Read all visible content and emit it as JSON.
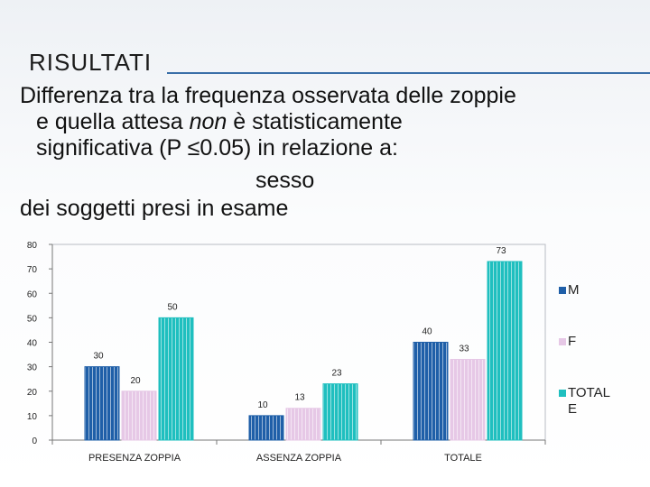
{
  "slide": {
    "title": "RISULTATI",
    "line1": "Differenza tra la frequenza osservata delle zoppie",
    "line2_pre": "e quella attesa ",
    "line2_em": "non",
    "line2_post": " è statisticamente",
    "line3": "significativa (P ≤0.05) in relazione a:",
    "line4": "sesso",
    "line5": "dei soggetti presi in esame"
  },
  "chart_data": {
    "type": "bar",
    "categories": [
      "PRESENZA ZOPPIA",
      "ASSENZA ZOPPIA",
      "TOTALE"
    ],
    "series": [
      {
        "name": "M",
        "values": [
          30,
          10,
          40
        ],
        "color": "#1f5fa8"
      },
      {
        "name": "F",
        "values": [
          20,
          13,
          33
        ],
        "color": "#e6c8e6"
      },
      {
        "name": "TOTAL E",
        "values": [
          50,
          23,
          73
        ],
        "color": "#1fbfbf"
      }
    ],
    "ylim": [
      0,
      80
    ],
    "yticks": [
      0,
      10,
      20,
      30,
      40,
      50,
      60,
      70,
      80
    ],
    "grid": false,
    "legend_position": "right"
  }
}
